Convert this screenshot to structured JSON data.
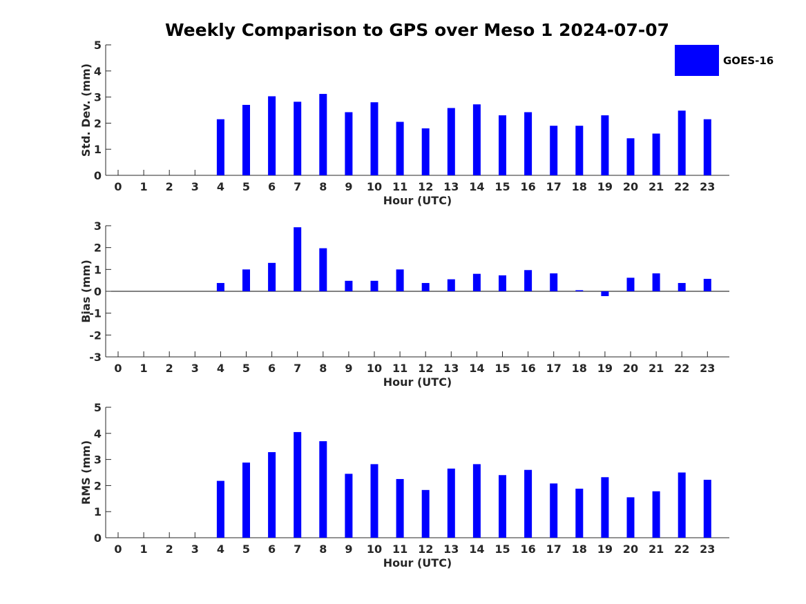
{
  "title": "Weekly Comparison to GPS over Meso 1 2024-07-07",
  "colors": {
    "bar": "#0000ff",
    "axis": "#262626",
    "background": "#ffffff"
  },
  "legend": {
    "label": "GOES-16"
  },
  "chart_data": [
    {
      "type": "bar",
      "name": "std-dev",
      "title": "Weekly Comparison to GPS over Meso 1 2024-07-07",
      "xlabel": "Hour (UTC)",
      "ylabel": "Std. Dev. (mm)",
      "ylim": [
        0,
        5
      ],
      "yticks": [
        "0",
        "1",
        "2",
        "3",
        "4",
        "5"
      ],
      "categories": [
        "0",
        "1",
        "2",
        "3",
        "4",
        "5",
        "6",
        "7",
        "8",
        "9",
        "10",
        "11",
        "12",
        "13",
        "14",
        "15",
        "16",
        "17",
        "18",
        "19",
        "20",
        "21",
        "22",
        "23"
      ],
      "series": [
        {
          "name": "GOES-16",
          "values": [
            null,
            null,
            null,
            null,
            2.15,
            2.7,
            3.03,
            2.82,
            3.12,
            2.42,
            2.8,
            2.05,
            1.8,
            2.58,
            2.72,
            2.3,
            2.42,
            1.9,
            1.9,
            2.3,
            1.42,
            1.6,
            2.48,
            2.15
          ]
        }
      ]
    },
    {
      "type": "bar",
      "name": "bias",
      "xlabel": "Hour (UTC)",
      "ylabel": "Bias (mm)",
      "ylim": [
        -3,
        3
      ],
      "yticks": [
        "-3",
        "-2",
        "-1",
        "0",
        "1",
        "2",
        "3"
      ],
      "categories": [
        "0",
        "1",
        "2",
        "3",
        "4",
        "5",
        "6",
        "7",
        "8",
        "9",
        "10",
        "11",
        "12",
        "13",
        "14",
        "15",
        "16",
        "17",
        "18",
        "19",
        "20",
        "21",
        "22",
        "23"
      ],
      "series": [
        {
          "name": "GOES-16",
          "values": [
            null,
            null,
            null,
            null,
            0.38,
            1.0,
            1.3,
            2.93,
            1.97,
            0.48,
            0.48,
            1.0,
            0.38,
            0.55,
            0.8,
            0.73,
            0.97,
            0.82,
            0.05,
            -0.22,
            0.62,
            0.82,
            0.38,
            0.57
          ]
        }
      ]
    },
    {
      "type": "bar",
      "name": "rms",
      "xlabel": "Hour (UTC)",
      "ylabel": "RMS (mm)",
      "ylim": [
        0,
        5
      ],
      "yticks": [
        "0",
        "1",
        "2",
        "3",
        "4",
        "5"
      ],
      "categories": [
        "0",
        "1",
        "2",
        "3",
        "4",
        "5",
        "6",
        "7",
        "8",
        "9",
        "10",
        "11",
        "12",
        "13",
        "14",
        "15",
        "16",
        "17",
        "18",
        "19",
        "20",
        "21",
        "22",
        "23"
      ],
      "series": [
        {
          "name": "GOES-16",
          "values": [
            null,
            null,
            null,
            null,
            2.18,
            2.88,
            3.28,
            4.05,
            3.7,
            2.45,
            2.82,
            2.25,
            1.83,
            2.65,
            2.82,
            2.4,
            2.6,
            2.08,
            1.88,
            2.32,
            1.55,
            1.78,
            2.5,
            2.22
          ]
        }
      ]
    }
  ]
}
